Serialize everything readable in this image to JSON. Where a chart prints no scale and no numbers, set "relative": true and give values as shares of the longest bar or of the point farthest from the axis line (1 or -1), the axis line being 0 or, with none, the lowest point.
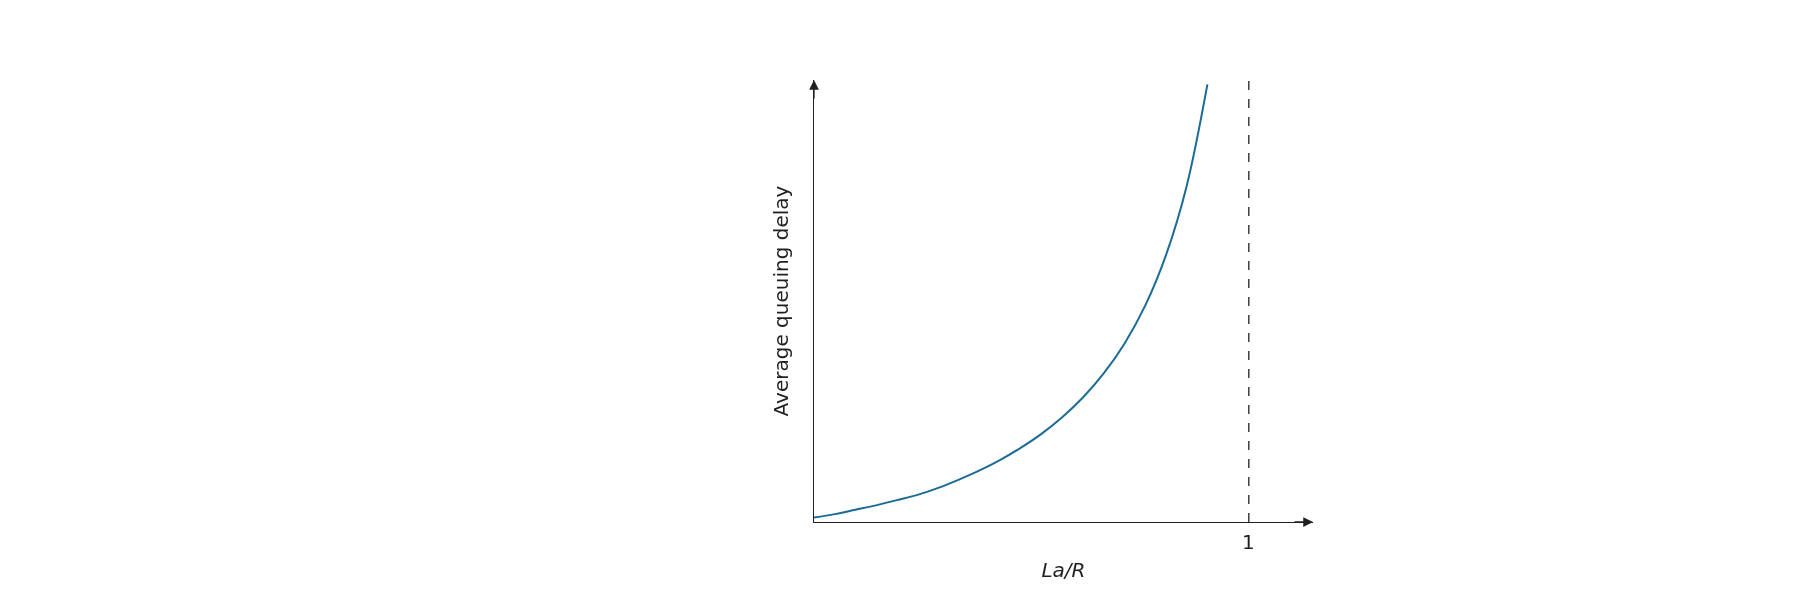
{
  "chart_data": {
    "type": "line",
    "relative": true,
    "categories": [
      null,
      null,
      null,
      null,
      null,
      null,
      null,
      null,
      null,
      null,
      null,
      null,
      null,
      null,
      null,
      null,
      null,
      null,
      null,
      null,
      null,
      null
    ],
    "series": [
      {
        "color": "#1b6b96",
        "values": [
          0.01,
          0.018,
          0.028,
          0.038,
          0.05,
          0.062,
          0.078,
          0.097,
          0.118,
          0.142,
          0.17,
          0.202,
          0.24,
          0.285,
          0.34,
          0.408,
          0.495,
          0.61,
          0.768,
          1,
          null,
          null
        ]
      }
    ],
    "xlabel": "La/R",
    "ylabel": "Average queuing delay",
    "annotations": [
      "1"
    ],
    "marker": "none",
    "line_style": "solid",
    "tick_labels": false
  }
}
